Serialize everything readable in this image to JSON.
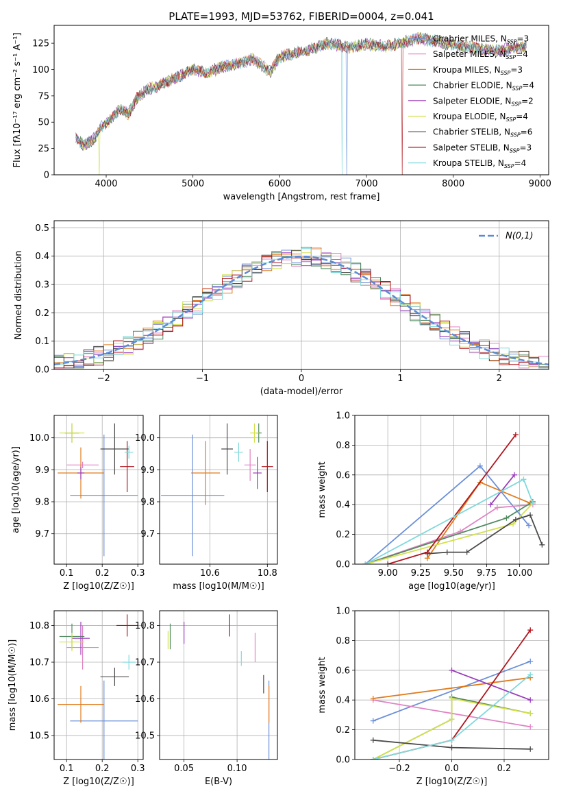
{
  "figure_title": "PLATE=1993, MJD=53762, FIBERID=0004, z=0.041",
  "models": [
    {
      "label": "Chabrier MILES, N",
      "nssp": "=3",
      "color": "#6b8fd8"
    },
    {
      "label": "Salpeter MILES, N",
      "nssp": "=4",
      "color": "#e083c4"
    },
    {
      "label": "Kroupa MILES, N",
      "nssp": "=3",
      "color": "#e07b1c"
    },
    {
      "label": "Chabrier ELODIE, N",
      "nssp": "=4",
      "color": "#4f8a5e"
    },
    {
      "label": "Salpeter ELODIE, N",
      "nssp": "=2",
      "color": "#9a3dbb"
    },
    {
      "label": "Kroupa ELODIE, N",
      "nssp": "=4",
      "color": "#d4e04a"
    },
    {
      "label": "Chabrier STELIB, N",
      "nssp": "=6",
      "color": "#4a4a4a"
    },
    {
      "label": "Salpeter STELIB, N",
      "nssp": "=3",
      "color": "#b0151d"
    },
    {
      "label": "Kroupa STELIB, N",
      "nssp": "=4",
      "color": "#7fd9dc"
    }
  ],
  "nssp_subscript": "SSP",
  "chart_data": [
    {
      "id": "spectrum",
      "type": "line",
      "xlabel": "wavelength [Angstrom, rest frame]",
      "ylabel": "Flux [fλ10⁻¹⁷ erg cm⁻² s⁻¹ A⁻¹]",
      "xlim": [
        3400,
        9100
      ],
      "ylim": [
        0,
        142
      ],
      "xticks": [
        4000,
        5000,
        6000,
        7000,
        8000,
        9000
      ],
      "yticks": [
        0,
        25,
        50,
        75,
        100,
        125
      ],
      "spectrum_knots": [
        [
          3650,
          35
        ],
        [
          3750,
          28
        ],
        [
          3850,
          33
        ],
        [
          3950,
          46
        ],
        [
          4050,
          52
        ],
        [
          4150,
          62
        ],
        [
          4250,
          58
        ],
        [
          4350,
          72
        ],
        [
          4450,
          80
        ],
        [
          4600,
          85
        ],
        [
          4800,
          92
        ],
        [
          5000,
          100
        ],
        [
          5175,
          96
        ],
        [
          5300,
          102
        ],
        [
          5500,
          105
        ],
        [
          5700,
          110
        ],
        [
          5890,
          98
        ],
        [
          6000,
          112
        ],
        [
          6300,
          118
        ],
        [
          6563,
          125
        ],
        [
          6800,
          121
        ],
        [
          7000,
          124
        ],
        [
          7200,
          122
        ],
        [
          7400,
          125
        ],
        [
          7600,
          130
        ],
        [
          7800,
          127
        ],
        [
          8000,
          123
        ],
        [
          8200,
          121
        ],
        [
          8500,
          118
        ],
        [
          8800,
          122
        ]
      ],
      "dropouts": [
        {
          "model": 5,
          "x": 3920
        },
        {
          "model": 8,
          "x": 6720
        },
        {
          "model": 0,
          "x": 6770
        },
        {
          "model": 7,
          "x": 7415
        }
      ]
    },
    {
      "id": "residual-histogram",
      "type": "line",
      "xlabel": "(data-model)/error",
      "ylabel": "Normed distribution",
      "xlim": [
        -2.5,
        2.5
      ],
      "ylim": [
        0,
        0.525
      ],
      "xticks": [
        -2,
        -1,
        0,
        1,
        2
      ],
      "yticks": [
        0.0,
        0.1,
        0.2,
        0.3,
        0.4,
        0.5
      ],
      "reference_label": "N(0,1)",
      "reference_color": "#5b8bd8",
      "bin_width": 0.1
    },
    {
      "id": "age-vs-metallicity",
      "type": "scatter",
      "xlabel": "Z [log10(Z/Z☉)]",
      "ylabel": "age  [log10(age/yr)]",
      "xlim": [
        0.065,
        0.315
      ],
      "ylim": [
        9.605,
        10.07
      ],
      "xticks": [
        0.1,
        0.2,
        0.3
      ],
      "yticks": [
        9.7,
        9.8,
        9.9,
        10.0
      ],
      "points": [
        {
          "model": 0,
          "x": 0.205,
          "xerr": 0.095,
          "y": 9.82,
          "yerr": 0.19
        },
        {
          "model": 1,
          "x": 0.145,
          "xerr": 0.045,
          "y": 9.915,
          "yerr": 0.01
        },
        {
          "model": 2,
          "x": 0.14,
          "xerr": 0.065,
          "y": 9.89,
          "yerr": 0.08
        },
        {
          "model": 3,
          "x": 0.115,
          "xerr": 0.02,
          "y": 10.015,
          "yerr": 0.03
        },
        {
          "model": 4,
          "x": 0.14,
          "xerr": 0.01,
          "y": 9.89,
          "yerr": 0.02
        },
        {
          "model": 5,
          "x": 0.115,
          "xerr": 0.035,
          "y": 10.015,
          "yerr": 0.03
        },
        {
          "model": 6,
          "x": 0.235,
          "xerr": 0.04,
          "y": 9.965,
          "yerr": 0.08
        },
        {
          "model": 7,
          "x": 0.27,
          "xerr": 0.02,
          "y": 9.91,
          "yerr": 0.08
        },
        {
          "model": 8,
          "x": 0.275,
          "xerr": 0.012,
          "y": 9.955,
          "yerr": 0.02
        }
      ]
    },
    {
      "id": "age-vs-mass",
      "type": "scatter",
      "xlabel": "mass [log10(M/M☉)]",
      "ylabel": "",
      "xlim": [
        10.425,
        10.835
      ],
      "ylim": [
        9.605,
        10.07
      ],
      "xticks": [
        10.4,
        10.6,
        10.8
      ],
      "yticks": [
        9.7,
        9.8,
        9.9,
        10.0
      ],
      "points": [
        {
          "model": 0,
          "x": 10.54,
          "xerr": 0.11,
          "y": 9.82,
          "yerr": 0.19
        },
        {
          "model": 1,
          "x": 10.74,
          "xerr": 0.02,
          "y": 9.915,
          "yerr": 0.05
        },
        {
          "model": 2,
          "x": 10.585,
          "xerr": 0.05,
          "y": 9.89,
          "yerr": 0.1
        },
        {
          "model": 3,
          "x": 10.77,
          "xerr": 0.01,
          "y": 10.015,
          "yerr": 0.03
        },
        {
          "model": 4,
          "x": 10.765,
          "xerr": 0.015,
          "y": 9.89,
          "yerr": 0.05
        },
        {
          "model": 5,
          "x": 10.755,
          "xerr": 0.015,
          "y": 10.015,
          "yerr": 0.03
        },
        {
          "model": 6,
          "x": 10.66,
          "xerr": 0.02,
          "y": 9.965,
          "yerr": 0.08
        },
        {
          "model": 7,
          "x": 10.8,
          "xerr": 0.02,
          "y": 9.91,
          "yerr": 0.08
        },
        {
          "model": 8,
          "x": 10.7,
          "xerr": 0.015,
          "y": 9.955,
          "yerr": 0.03
        }
      ]
    },
    {
      "id": "mass-weight-vs-age",
      "type": "line",
      "xlabel": "age  [log10(age/yr)]",
      "ylabel": "mass weight",
      "xlim": [
        8.75,
        10.22
      ],
      "ylim": [
        0,
        1.0
      ],
      "xticks": [
        9.0,
        9.25,
        9.5,
        9.75,
        10.0
      ],
      "yticks": [
        0.0,
        0.2,
        0.4,
        0.6,
        0.8,
        1.0
      ],
      "series": [
        {
          "model": 0,
          "x": [
            8.83,
            9.7,
            10.07
          ],
          "y": [
            0.0,
            0.66,
            0.26
          ]
        },
        {
          "model": 1,
          "x": [
            8.83,
            9.55,
            9.83,
            10.1
          ],
          "y": [
            0.0,
            0.22,
            0.38,
            0.4
          ]
        },
        {
          "model": 2,
          "x": [
            9.3,
            9.7,
            10.08
          ],
          "y": [
            0.04,
            0.55,
            0.41
          ]
        },
        {
          "model": 3,
          "x": [
            8.83,
            9.9,
            10.1
          ],
          "y": [
            0.0,
            0.31,
            0.42
          ]
        },
        {
          "model": 4,
          "x": [
            9.78,
            9.96
          ],
          "y": [
            0.4,
            0.6
          ]
        },
        {
          "model": 5,
          "x": [
            8.83,
            9.95,
            10.1
          ],
          "y": [
            0.0,
            0.27,
            0.41
          ]
        },
        {
          "model": 6,
          "x": [
            9.3,
            9.45,
            9.6,
            9.97,
            10.08,
            10.17
          ],
          "y": [
            0.07,
            0.08,
            0.08,
            0.3,
            0.33,
            0.13
          ]
        },
        {
          "model": 7,
          "x": [
            9.0,
            9.3,
            9.97
          ],
          "y": [
            0.0,
            0.08,
            0.87
          ]
        },
        {
          "model": 8,
          "x": [
            8.83,
            10.03,
            10.1
          ],
          "y": [
            0.0,
            0.57,
            0.41
          ]
        }
      ]
    },
    {
      "id": "mass-vs-metallicity",
      "type": "scatter",
      "xlabel": "Z [log10(Z/Z☉)]",
      "ylabel": "mass [log10(M/M☉)]",
      "xlim": [
        0.065,
        0.315
      ],
      "ylim": [
        10.435,
        10.84
      ],
      "xticks": [
        0.1,
        0.2,
        0.3
      ],
      "yticks": [
        10.5,
        10.6,
        10.7,
        10.8
      ],
      "points": [
        {
          "model": 0,
          "x": 0.205,
          "xerr": 0.095,
          "y": 10.54,
          "yerr": 0.11
        },
        {
          "model": 1,
          "x": 0.145,
          "xerr": 0.045,
          "y": 10.74,
          "yerr": 0.06
        },
        {
          "model": 2,
          "x": 0.14,
          "xerr": 0.065,
          "y": 10.585,
          "yerr": 0.05
        },
        {
          "model": 3,
          "x": 0.115,
          "xerr": 0.035,
          "y": 10.77,
          "yerr": 0.035
        },
        {
          "model": 4,
          "x": 0.14,
          "xerr": 0.025,
          "y": 10.765,
          "yerr": 0.045
        },
        {
          "model": 5,
          "x": 0.115,
          "xerr": 0.035,
          "y": 10.755,
          "yerr": 0.025
        },
        {
          "model": 6,
          "x": 0.235,
          "xerr": 0.04,
          "y": 10.66,
          "yerr": 0.025
        },
        {
          "model": 7,
          "x": 0.27,
          "xerr": 0.03,
          "y": 10.8,
          "yerr": 0.03
        },
        {
          "model": 8,
          "x": 0.275,
          "xerr": 0.018,
          "y": 10.7,
          "yerr": 0.02
        }
      ]
    },
    {
      "id": "mass-vs-ebv",
      "type": "scatter",
      "xlabel": "E(B-V)",
      "ylabel": "",
      "xlim": [
        0.027,
        0.138
      ],
      "ylim": [
        10.435,
        10.84
      ],
      "xticks": [
        0.05,
        0.1
      ],
      "yticks": [
        10.5,
        10.6,
        10.7,
        10.8
      ],
      "points": [
        {
          "model": 0,
          "x": 0.13,
          "xerr": 0.0,
          "y": 10.54,
          "yerr": 0.11
        },
        {
          "model": 1,
          "x": 0.117,
          "xerr": 0.0,
          "y": 10.74,
          "yerr": 0.04
        },
        {
          "model": 2,
          "x": 0.13,
          "xerr": 0.0,
          "y": 10.585,
          "yerr": 0.05
        },
        {
          "model": 3,
          "x": 0.037,
          "xerr": 0.0,
          "y": 10.77,
          "yerr": 0.035
        },
        {
          "model": 4,
          "x": 0.05,
          "xerr": 0.0,
          "y": 10.78,
          "yerr": 0.03
        },
        {
          "model": 5,
          "x": 0.035,
          "xerr": 0.0,
          "y": 10.76,
          "yerr": 0.025
        },
        {
          "model": 6,
          "x": 0.125,
          "xerr": 0.0,
          "y": 10.64,
          "yerr": 0.025
        },
        {
          "model": 7,
          "x": 0.093,
          "xerr": 0.0,
          "y": 10.8,
          "yerr": 0.03
        },
        {
          "model": 8,
          "x": 0.104,
          "xerr": 0.0,
          "y": 10.71,
          "yerr": 0.02
        }
      ]
    },
    {
      "id": "mass-weight-vs-metallicity",
      "type": "line",
      "xlabel": "Z [log10(Z/Z☉)]",
      "ylabel": "mass weight",
      "xlim": [
        -0.37,
        0.37
      ],
      "ylim": [
        0,
        1.0
      ],
      "xticks": [
        -0.2,
        0.0,
        0.2
      ],
      "yticks": [
        0.0,
        0.2,
        0.4,
        0.6,
        0.8,
        1.0
      ],
      "series": [
        {
          "model": 0,
          "x": [
            -0.3,
            0.3
          ],
          "y": [
            0.26,
            0.66
          ]
        },
        {
          "model": 1,
          "x": [
            -0.3,
            0.3
          ],
          "y": [
            0.4,
            0.22
          ]
        },
        {
          "model": 2,
          "x": [
            -0.3,
            0.3
          ],
          "y": [
            0.41,
            0.55
          ]
        },
        {
          "model": 3,
          "x": [
            -0.3,
            0.0,
            0.0,
            0.3
          ],
          "y": [
            0.0,
            0.27,
            0.42,
            0.31
          ]
        },
        {
          "model": 4,
          "x": [
            0.0,
            0.3
          ],
          "y": [
            0.6,
            0.4
          ]
        },
        {
          "model": 5,
          "x": [
            -0.3,
            0.0,
            0.0,
            0.3
          ],
          "y": [
            0.0,
            0.27,
            0.41,
            0.31
          ]
        },
        {
          "model": 6,
          "x": [
            -0.3,
            0.0,
            0.3
          ],
          "y": [
            0.13,
            0.08,
            0.07
          ]
        },
        {
          "model": 7,
          "x": [
            -0.3,
            0.0,
            0.3
          ],
          "y": [
            0.0,
            0.13,
            0.87
          ]
        },
        {
          "model": 8,
          "x": [
            -0.3,
            0.0,
            0.3
          ],
          "y": [
            0.0,
            0.13,
            0.57
          ]
        }
      ]
    }
  ]
}
